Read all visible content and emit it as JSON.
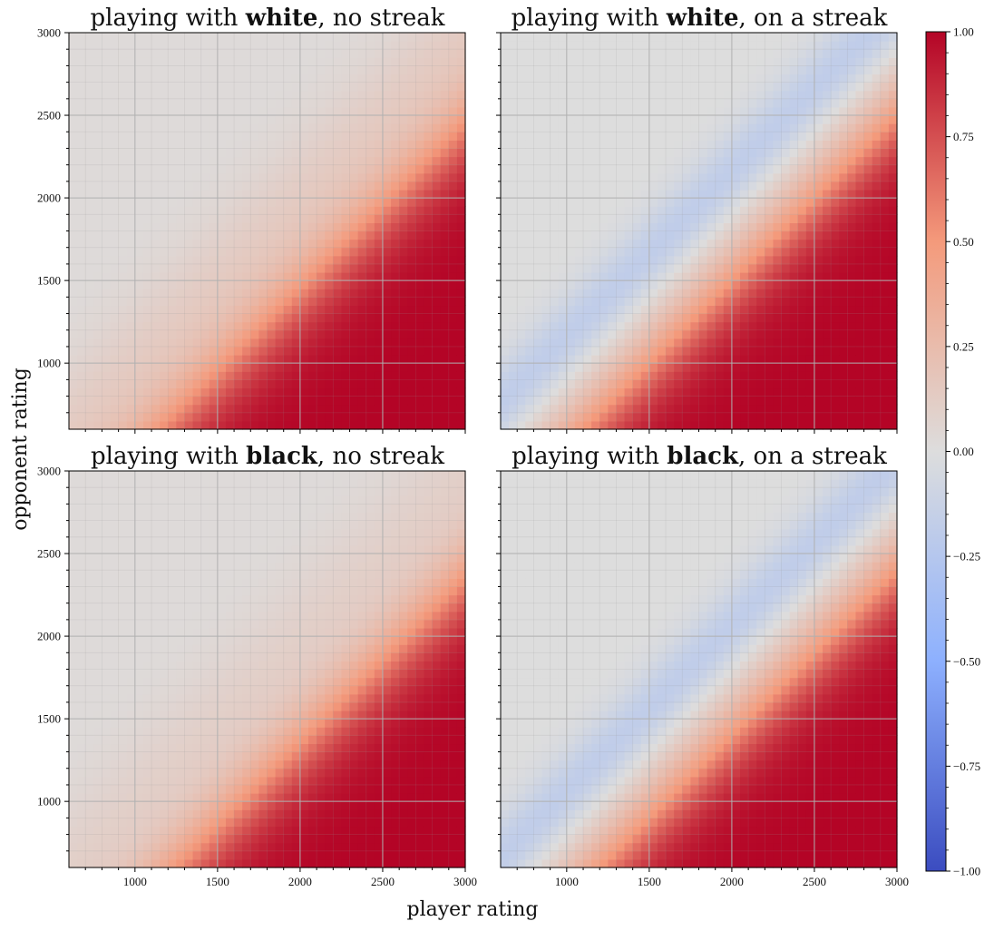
{
  "chart_data": {
    "type": "heatmap",
    "xlabel": "player rating",
    "ylabel": "opponent rating",
    "xlim": [
      600,
      3000
    ],
    "ylim": [
      600,
      3000
    ],
    "x_ticks": [
      1000,
      1500,
      2000,
      2500,
      3000
    ],
    "y_ticks": [
      1000,
      1500,
      2000,
      2500,
      3000
    ],
    "grid": true,
    "colormap": "coolwarm",
    "colormap_stops": {
      "-1.00": "#3b4cc0",
      "-0.50": "#8db0fe",
      "0.00": "#dddddd",
      "0.50": "#f49a7b",
      "1.00": "#b40426"
    },
    "colorbar": {
      "range": [
        -1.0,
        1.0
      ],
      "ticks": [
        1.0,
        0.75,
        0.5,
        0.25,
        0.0,
        -0.25,
        -0.5,
        -0.75,
        -1.0
      ],
      "tick_labels": [
        "1.00",
        "0.75",
        "0.50",
        "0.25",
        "0.00",
        "−0.25",
        "−0.50",
        "−0.75",
        "−1.00"
      ]
    },
    "panels": [
      {
        "title_pre": "playing with ",
        "title_bold": "white",
        "title_post": ", no streak",
        "description": "value rises from ~0 when opponent rating >> player rating to ~1 when player rating >> opponent rating; transition band along the diagonal, no negative region",
        "min_value": 0.0,
        "max_value": 1.0
      },
      {
        "title_pre": "playing with ",
        "title_bold": "white",
        "title_post": ", on a streak",
        "description": "same as no streak but with a faint negative (~-0.2) band just above the diagonal",
        "min_value": -0.2,
        "max_value": 1.0
      },
      {
        "title_pre": "playing with ",
        "title_bold": "black",
        "title_post": ", no streak",
        "description": "similar to white no streak, transition shifted slightly toward higher player rating",
        "min_value": 0.0,
        "max_value": 1.0
      },
      {
        "title_pre": "playing with ",
        "title_bold": "black",
        "title_post": ", on a streak",
        "description": "faint negative (~-0.2) band above the diagonal, positive below",
        "min_value": -0.2,
        "max_value": 1.0
      }
    ]
  }
}
